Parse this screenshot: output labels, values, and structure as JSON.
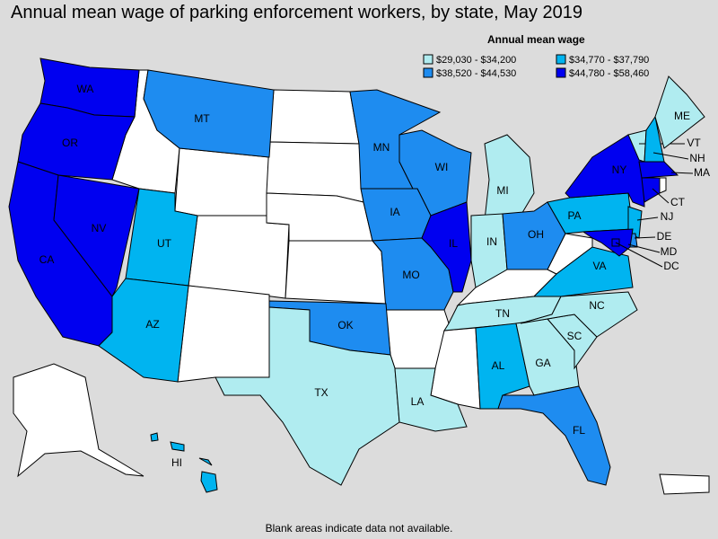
{
  "title": "Annual mean wage of parking enforcement workers, by state, May 2019",
  "legend": {
    "title": "Annual mean wage",
    "entries": [
      {
        "label": "$29,030 - $34,200",
        "color": "#b0ecf0"
      },
      {
        "label": "$34,770 - $37,790",
        "color": "#00b4f0"
      },
      {
        "label": "$38,520 - $44,530",
        "color": "#1e8cf0"
      },
      {
        "label": "$44,780 - $58,460",
        "color": "#0000f0"
      }
    ]
  },
  "states": [
    {
      "abbr": "WA",
      "level": 3
    },
    {
      "abbr": "OR",
      "level": 3
    },
    {
      "abbr": "CA",
      "level": 3
    },
    {
      "abbr": "NV",
      "level": 3
    },
    {
      "abbr": "UT",
      "level": 1
    },
    {
      "abbr": "AZ",
      "level": 1
    },
    {
      "abbr": "MT",
      "level": 2
    },
    {
      "abbr": "MN",
      "level": 2
    },
    {
      "abbr": "WI",
      "level": 2
    },
    {
      "abbr": "IA",
      "level": 2
    },
    {
      "abbr": "MO",
      "level": 2
    },
    {
      "abbr": "OK",
      "level": 2
    },
    {
      "abbr": "TX",
      "level": 0
    },
    {
      "abbr": "LA",
      "level": 0
    },
    {
      "abbr": "IL",
      "level": 3
    },
    {
      "abbr": "MI",
      "level": 0
    },
    {
      "abbr": "IN",
      "level": 0
    },
    {
      "abbr": "OH",
      "level": 2
    },
    {
      "abbr": "TN",
      "level": 0
    },
    {
      "abbr": "AL",
      "level": 1
    },
    {
      "abbr": "GA",
      "level": 0
    },
    {
      "abbr": "FL",
      "level": 2
    },
    {
      "abbr": "SC",
      "level": 0
    },
    {
      "abbr": "NC",
      "level": 0
    },
    {
      "abbr": "VA",
      "level": 1
    },
    {
      "abbr": "PA",
      "level": 1
    },
    {
      "abbr": "NY",
      "level": 3
    },
    {
      "abbr": "VT",
      "level": 0
    },
    {
      "abbr": "NH",
      "level": 1
    },
    {
      "abbr": "ME",
      "level": 0
    },
    {
      "abbr": "MA",
      "level": 3
    },
    {
      "abbr": "CT",
      "level": 3
    },
    {
      "abbr": "NJ",
      "level": 1
    },
    {
      "abbr": "DE",
      "level": 2
    },
    {
      "abbr": "MD",
      "level": 3
    },
    {
      "abbr": "DC",
      "level": 3
    },
    {
      "abbr": "HI",
      "level": 1
    }
  ],
  "footnote": "Blank areas indicate data not available."
}
